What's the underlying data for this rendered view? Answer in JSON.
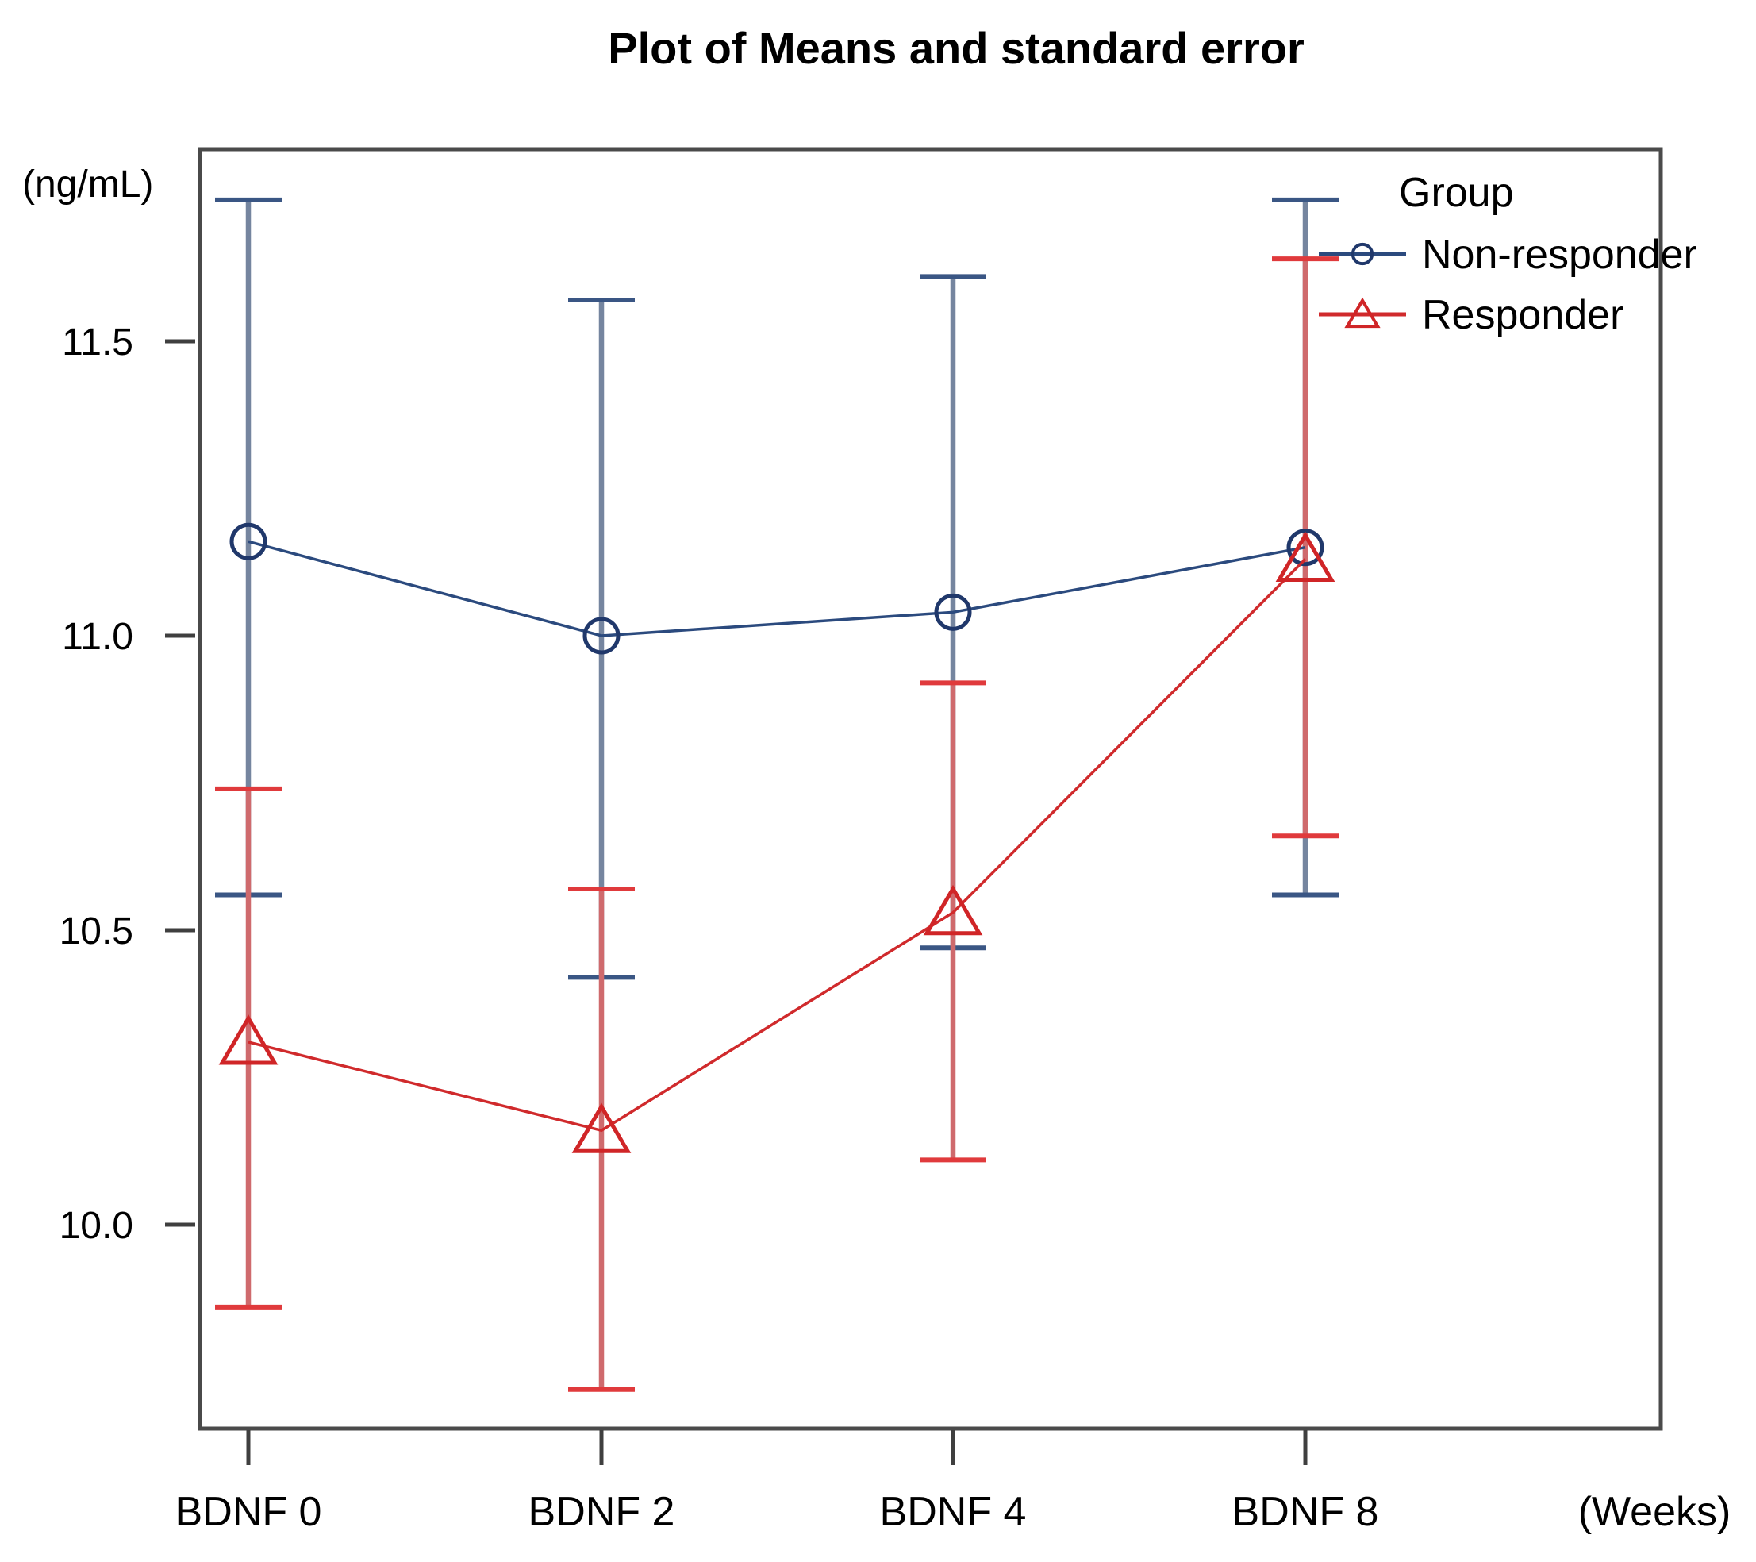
{
  "page": {
    "background": "#ffffff"
  },
  "chart_data": {
    "type": "line",
    "title": "Plot of Means and standard error",
    "y_axis": {
      "unit_label": "(ng/mL)",
      "tick_labels": [
        "11.5",
        "11.0",
        "10.5",
        "10.0"
      ],
      "tick_values": [
        11.5,
        11.0,
        10.5,
        10.0
      ],
      "ylim": [
        9.67,
        11.83
      ]
    },
    "x_axis": {
      "unit_label": "(Weeks)",
      "categories": [
        "BDNF 0",
        "BDNF 2",
        "BDNF 4",
        "BDNF 8"
      ]
    },
    "grid": false,
    "legend": {
      "title": "Group",
      "position": "top-right",
      "entries": [
        {
          "label": "Non-responder",
          "marker": "circle",
          "color": "#2b4a7e"
        },
        {
          "label": "Responder",
          "marker": "triangle",
          "color": "#d02a2c"
        }
      ]
    },
    "series": [
      {
        "name": "Non-responder",
        "marker": "circle",
        "color": "#2b4a7e",
        "marker_color": "#20386b",
        "stem_color": "#75859f",
        "cap_color": "#3a5684",
        "means": [
          11.16,
          11.0,
          11.04,
          11.15
        ],
        "err_high": [
          11.74,
          11.57,
          11.61,
          11.74
        ],
        "err_low": [
          10.56,
          10.42,
          10.47,
          10.56
        ]
      },
      {
        "name": "Responder",
        "marker": "triangle",
        "color": "#d02a2c",
        "marker_color": "#d02527",
        "stem_color": "#cf6a6d",
        "cap_color": "#e03a3c",
        "means": [
          10.31,
          10.16,
          10.53,
          11.13
        ],
        "err_high": [
          10.74,
          10.57,
          10.92,
          11.64
        ],
        "err_low": [
          9.86,
          9.72,
          10.11,
          10.66
        ]
      }
    ],
    "colors": {
      "border": "#4a4a4a",
      "tick": "#3f3f3f",
      "text": "#000000"
    }
  }
}
